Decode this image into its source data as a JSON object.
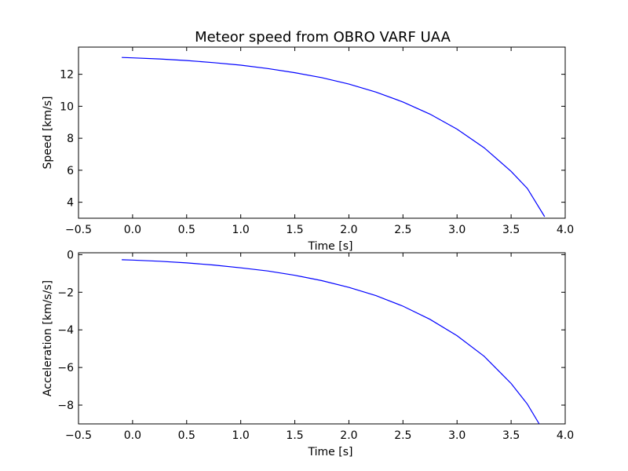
{
  "chart_data": [
    {
      "type": "line",
      "title": "Meteor speed from  OBRO VARF UAA",
      "xlabel": "Time [s]",
      "ylabel": "Speed [km/s]",
      "xlim": [
        -0.5,
        4.0
      ],
      "ylim": [
        3.0,
        13.7
      ],
      "xticks": [
        -0.5,
        0.0,
        0.5,
        1.0,
        1.5,
        2.0,
        2.5,
        3.0,
        3.5,
        4.0
      ],
      "xtick_labels": [
        "−0.5",
        "0.0",
        "0.5",
        "1.0",
        "1.5",
        "2.0",
        "2.5",
        "3.0",
        "3.5",
        "4.0"
      ],
      "yticks": [
        4,
        6,
        8,
        10,
        12
      ],
      "ytick_labels": [
        "4",
        "6",
        "8",
        "10",
        "12"
      ],
      "grid": false,
      "color": "#0000ff",
      "series": [
        {
          "x": [
            -0.1,
            0.0,
            0.25,
            0.5,
            0.75,
            1.0,
            1.25,
            1.5,
            1.75,
            2.0,
            2.25,
            2.5,
            2.75,
            3.0,
            3.25,
            3.5,
            3.65,
            3.81
          ],
          "y": [
            13.05,
            13.03,
            12.96,
            12.86,
            12.73,
            12.57,
            12.36,
            12.1,
            11.79,
            11.39,
            10.89,
            10.27,
            9.51,
            8.57,
            7.41,
            5.93,
            4.86,
            3.1
          ]
        }
      ]
    },
    {
      "type": "line",
      "title": "",
      "xlabel": "Time [s]",
      "ylabel": "Acceleration [km/s/s]",
      "xlim": [
        -0.5,
        4.0
      ],
      "ylim": [
        -9.0,
        0.1
      ],
      "xticks": [
        -0.5,
        0.0,
        0.5,
        1.0,
        1.5,
        2.0,
        2.5,
        3.0,
        3.5,
        4.0
      ],
      "xtick_labels": [
        "−0.5",
        "0.0",
        "0.5",
        "1.0",
        "1.5",
        "2.0",
        "2.5",
        "3.0",
        "3.5",
        "4.0"
      ],
      "yticks": [
        0,
        -2,
        -4,
        -6,
        -8
      ],
      "ytick_labels": [
        "0",
        "−2",
        "−4",
        "−6",
        "−8"
      ],
      "grid": false,
      "color": "#0000ff",
      "series": [
        {
          "x": [
            -0.1,
            0.0,
            0.25,
            0.5,
            0.75,
            1.0,
            1.25,
            1.5,
            1.75,
            2.0,
            2.25,
            2.5,
            2.75,
            3.0,
            3.25,
            3.5,
            3.65,
            3.76
          ],
          "y": [
            -0.27,
            -0.29,
            -0.35,
            -0.44,
            -0.55,
            -0.7,
            -0.87,
            -1.1,
            -1.38,
            -1.74,
            -2.18,
            -2.74,
            -3.44,
            -4.31,
            -5.4,
            -6.85,
            -7.95,
            -9.0
          ]
        }
      ]
    }
  ]
}
